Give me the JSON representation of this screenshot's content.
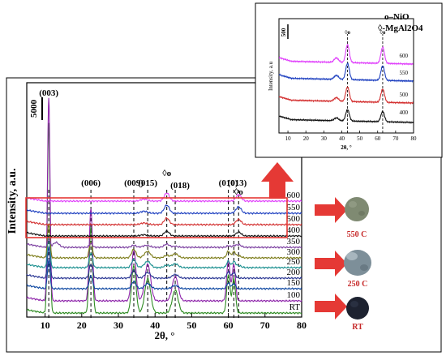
{
  "chart_data": [
    {
      "type": "line",
      "ylabel": "Intensity, a.u.",
      "xlabel": "2θ, °",
      "xlim": [
        5,
        80
      ],
      "xticks": [
        10,
        20,
        30,
        40,
        50,
        60,
        70,
        80
      ],
      "scale_bar_label": "5000",
      "series": [
        {
          "name": "RT",
          "color": "#2e8b22"
        },
        {
          "name": "100",
          "color": "#8e24aa"
        },
        {
          "name": "150",
          "color": "#0d47a1"
        },
        {
          "name": "200",
          "color": "#283593"
        },
        {
          "name": "250",
          "color": "#1a8f8f"
        },
        {
          "name": "300",
          "color": "#7d7d1a"
        },
        {
          "name": "350",
          "color": "#7b3fa0"
        },
        {
          "name": "400",
          "color": "#111111"
        },
        {
          "name": "500",
          "color": "#d32f2f"
        },
        {
          "name": "550",
          "color": "#1e40c0"
        },
        {
          "name": "600",
          "color": "#e040fb"
        }
      ],
      "annotations": [
        {
          "label": "(003)",
          "x": 11.0
        },
        {
          "label": "(006)",
          "x": 22.5
        },
        {
          "label": "(009)",
          "x": 34.2
        },
        {
          "label": "(015)",
          "x": 38.0
        },
        {
          "label": "◊o",
          "x": 43.2
        },
        {
          "label": "(018)",
          "x": 45.5
        },
        {
          "label": "(010)",
          "x": 60.0
        },
        {
          "label": "(013)",
          "x": 61.5
        },
        {
          "label": "◊o",
          "x": 62.8
        }
      ],
      "dashed_positions": [
        11.0,
        22.5,
        34.2,
        38.0,
        43.2,
        45.5,
        60.0,
        61.5,
        62.8
      ]
    },
    {
      "type": "line",
      "ylabel": "Intensity, a.u",
      "xlabel": "2θ, °",
      "xlim": [
        5,
        80
      ],
      "xticks": [
        10,
        20,
        30,
        40,
        50,
        60,
        70,
        80
      ],
      "scale_bar_label": "500",
      "legend": [
        "o–NiO",
        "◊-MgAl2O4"
      ],
      "series": [
        {
          "name": "400",
          "color": "#111111"
        },
        {
          "name": "500",
          "color": "#d32f2f"
        },
        {
          "name": "550",
          "color": "#1e40c0"
        },
        {
          "name": "600",
          "color": "#e040fb"
        }
      ],
      "annotations": [
        {
          "label": "◊o",
          "x": 43.2
        },
        {
          "label": "◊o",
          "x": 62.8
        }
      ],
      "dashed_positions": [
        43.2,
        62.8
      ]
    }
  ],
  "samples": [
    {
      "label": "550 C",
      "color": "#7f8a72"
    },
    {
      "label": "250 C",
      "color": "#7d8f99"
    },
    {
      "label": "RT",
      "color": "#1d2230"
    }
  ],
  "colors": {
    "highlight": "#e53935",
    "arrow": "#e53935"
  }
}
